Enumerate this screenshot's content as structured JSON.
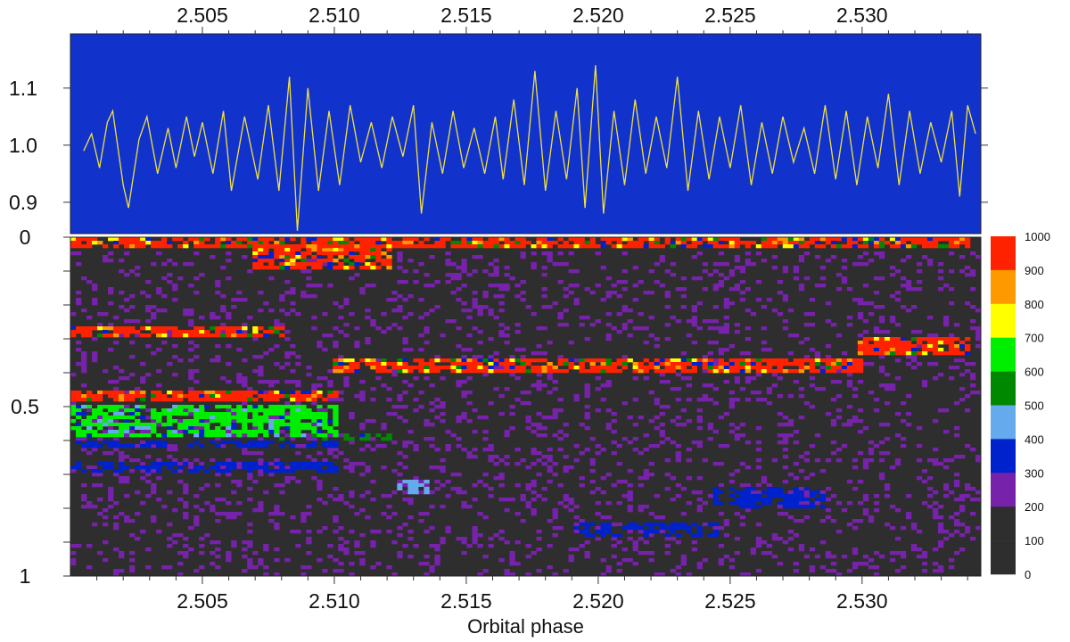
{
  "chart_data": [
    {
      "type": "line",
      "x_tick_labels_top": [
        "2.505",
        "2.510",
        "2.515",
        "2.520",
        "2.525",
        "2.530"
      ],
      "y_tick_labels": [
        "1.1",
        "1.0",
        "0.9"
      ],
      "xlim": [
        2.5,
        2.5345
      ],
      "ylim": [
        0.845,
        1.195
      ],
      "series": [
        {
          "points": [
            [
              2.5005,
              0.99
            ],
            [
              2.5008,
              1.02
            ],
            [
              2.5011,
              0.96
            ],
            [
              2.5014,
              1.04
            ],
            [
              2.5016,
              1.06
            ],
            [
              2.502,
              0.93
            ],
            [
              2.5022,
              0.89
            ],
            [
              2.5026,
              1.01
            ],
            [
              2.5029,
              1.05
            ],
            [
              2.5033,
              0.95
            ],
            [
              2.5037,
              1.03
            ],
            [
              2.504,
              0.96
            ],
            [
              2.5044,
              1.05
            ],
            [
              2.5047,
              0.98
            ],
            [
              2.505,
              1.04
            ],
            [
              2.5054,
              0.95
            ],
            [
              2.5058,
              1.06
            ],
            [
              2.5061,
              0.92
            ],
            [
              2.5066,
              1.05
            ],
            [
              2.5071,
              0.94
            ],
            [
              2.5075,
              1.07
            ],
            [
              2.5079,
              0.92
            ],
            [
              2.5083,
              1.12
            ],
            [
              2.5086,
              0.85
            ],
            [
              2.509,
              1.1
            ],
            [
              2.5094,
              0.92
            ],
            [
              2.5098,
              1.06
            ],
            [
              2.5102,
              0.93
            ],
            [
              2.5106,
              1.07
            ],
            [
              2.511,
              0.97
            ],
            [
              2.5114,
              1.04
            ],
            [
              2.5118,
              0.96
            ],
            [
              2.5122,
              1.05
            ],
            [
              2.5126,
              0.98
            ],
            [
              2.513,
              1.07
            ],
            [
              2.5133,
              0.88
            ],
            [
              2.5137,
              1.04
            ],
            [
              2.5141,
              0.95
            ],
            [
              2.5145,
              1.06
            ],
            [
              2.5149,
              0.96
            ],
            [
              2.5153,
              1.03
            ],
            [
              2.5157,
              0.95
            ],
            [
              2.5161,
              1.05
            ],
            [
              2.5164,
              0.94
            ],
            [
              2.5168,
              1.08
            ],
            [
              2.5172,
              0.93
            ],
            [
              2.5176,
              1.13
            ],
            [
              2.518,
              0.92
            ],
            [
              2.5184,
              1.06
            ],
            [
              2.5188,
              0.94
            ],
            [
              2.5192,
              1.1
            ],
            [
              2.5195,
              0.89
            ],
            [
              2.5199,
              1.14
            ],
            [
              2.5202,
              0.88
            ],
            [
              2.5206,
              1.06
            ],
            [
              2.521,
              0.93
            ],
            [
              2.5214,
              1.08
            ],
            [
              2.5218,
              0.95
            ],
            [
              2.5222,
              1.05
            ],
            [
              2.5226,
              0.96
            ],
            [
              2.523,
              1.12
            ],
            [
              2.5234,
              0.92
            ],
            [
              2.5238,
              1.06
            ],
            [
              2.5242,
              0.94
            ],
            [
              2.5246,
              1.05
            ],
            [
              2.525,
              0.96
            ],
            [
              2.5254,
              1.07
            ],
            [
              2.5258,
              0.93
            ],
            [
              2.5262,
              1.04
            ],
            [
              2.5266,
              0.95
            ],
            [
              2.527,
              1.05
            ],
            [
              2.5274,
              0.97
            ],
            [
              2.5278,
              1.03
            ],
            [
              2.5282,
              0.95
            ],
            [
              2.5286,
              1.07
            ],
            [
              2.529,
              0.94
            ],
            [
              2.5294,
              1.06
            ],
            [
              2.5298,
              0.93
            ],
            [
              2.5302,
              1.05
            ],
            [
              2.5306,
              0.96
            ],
            [
              2.531,
              1.09
            ],
            [
              2.5314,
              0.93
            ],
            [
              2.5318,
              1.06
            ],
            [
              2.5322,
              0.95
            ],
            [
              2.5326,
              1.04
            ],
            [
              2.533,
              0.97
            ],
            [
              2.5334,
              1.06
            ],
            [
              2.5337,
              0.91
            ],
            [
              2.534,
              1.07
            ],
            [
              2.5343,
              1.02
            ]
          ]
        }
      ]
    },
    {
      "type": "heatmap",
      "x_tick_labels": [
        "2.505",
        "2.510",
        "2.515",
        "2.520",
        "2.525",
        "2.530"
      ],
      "xlabel": "Orbital phase",
      "y_tick_labels": [
        "0",
        "0.5",
        "1"
      ],
      "xlim": [
        2.5,
        2.5345
      ],
      "ylim": [
        0,
        1
      ],
      "colorbar_labels": [
        "1000",
        "900",
        "800",
        "700",
        "600",
        "500",
        "400",
        "300",
        "200",
        "100",
        "0"
      ],
      "colorbar_colors": [
        "#ff2200",
        "#ff9900",
        "#ffff00",
        "#00ee00",
        "#008800",
        "#66aaee",
        "#0022cc",
        "#7722aa",
        "#2e2e2e"
      ],
      "features": [
        {
          "x_range": [
            2.5,
            2.534
          ],
          "y_range": [
            0.0,
            0.03
          ],
          "value": 1000
        },
        {
          "x_range": [
            2.507,
            2.512
          ],
          "y_range": [
            0.03,
            0.09
          ],
          "value": 1000
        },
        {
          "x_range": [
            2.5,
            2.508
          ],
          "y_range": [
            0.27,
            0.29
          ],
          "value": 1000
        },
        {
          "x_range": [
            2.53,
            2.534
          ],
          "y_range": [
            0.3,
            0.34
          ],
          "value": 1000
        },
        {
          "x_range": [
            2.51,
            2.53
          ],
          "y_range": [
            0.36,
            0.4
          ],
          "value": 1000
        },
        {
          "x_range": [
            2.5,
            2.51
          ],
          "y_range": [
            0.46,
            0.48
          ],
          "value": 1000
        },
        {
          "x_range": [
            2.5,
            2.51
          ],
          "y_range": [
            0.5,
            0.58
          ],
          "value": 600
        },
        {
          "x_range": [
            2.508,
            2.512
          ],
          "y_range": [
            0.58,
            0.6
          ],
          "value": 500
        },
        {
          "x_range": [
            2.5,
            2.51
          ],
          "y_range": [
            0.6,
            0.62
          ],
          "value": 300
        },
        {
          "x_range": [
            2.5,
            2.51
          ],
          "y_range": [
            0.67,
            0.69
          ],
          "value": 300
        },
        {
          "x_range": [
            2.5125,
            2.5135
          ],
          "y_range": [
            0.72,
            0.75
          ],
          "value": 400
        },
        {
          "x_range": [
            2.5245,
            2.5285
          ],
          "y_range": [
            0.74,
            0.8
          ],
          "value": 300
        },
        {
          "x_range": [
            2.519,
            2.5245
          ],
          "y_range": [
            0.85,
            0.88
          ],
          "value": 300
        },
        {
          "x_range": [
            2.5,
            2.5345
          ],
          "y_range": [
            0.05,
            1.0
          ],
          "value": 200
        }
      ]
    }
  ]
}
